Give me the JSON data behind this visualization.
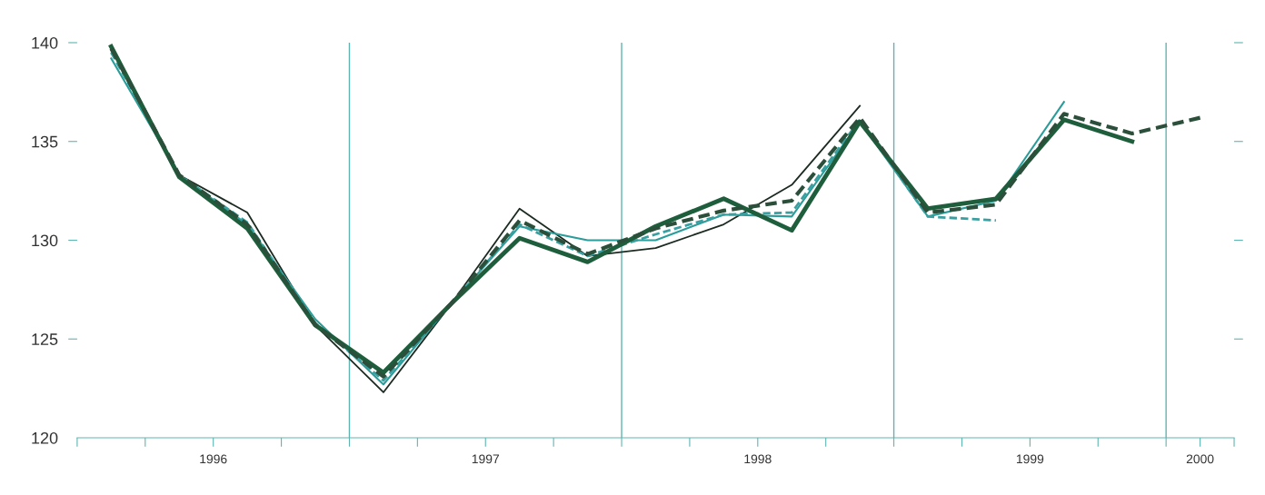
{
  "chart_data": {
    "type": "line",
    "grid": false,
    "legend": false,
    "marker": "none",
    "x": [
      1996.125,
      1996.375,
      1996.625,
      1996.875,
      1997.125,
      1997.375,
      1997.625,
      1997.875,
      1998.125,
      1998.375,
      1998.625,
      1998.875,
      1999.125,
      1999.375,
      1999.625,
      1999.875,
      2000.125
    ],
    "xlim": [
      1996,
      2000.25
    ],
    "xticks": [
      {
        "value": 1996,
        "label": null
      },
      {
        "value": 1996.25,
        "label": null
      },
      {
        "value": 1996.5,
        "label": "1996"
      },
      {
        "value": 1996.75,
        "label": null
      },
      {
        "value": 1997,
        "label": null
      },
      {
        "value": 1997.25,
        "label": null
      },
      {
        "value": 1997.5,
        "label": "1997"
      },
      {
        "value": 1997.75,
        "label": null
      },
      {
        "value": 1998,
        "label": null
      },
      {
        "value": 1998.25,
        "label": null
      },
      {
        "value": 1998.5,
        "label": "1998"
      },
      {
        "value": 1998.75,
        "label": null
      },
      {
        "value": 1999,
        "label": null
      },
      {
        "value": 1999.25,
        "label": null
      },
      {
        "value": 1999.5,
        "label": "1999"
      },
      {
        "value": 1999.75,
        "label": null
      },
      {
        "value": 2000,
        "label": null
      },
      {
        "value": 2000.125,
        "label": "2000"
      },
      {
        "value": 2000.25,
        "label": null
      }
    ],
    "ylim": [
      120,
      140
    ],
    "yticks": [
      120,
      125,
      130,
      135,
      140
    ],
    "ref_lines": [
      {
        "axis": "x",
        "value": 1997,
        "color": "#5fb5b2"
      },
      {
        "axis": "x",
        "value": 1998,
        "color": "#5fb5b2"
      },
      {
        "axis": "x",
        "value": 1999,
        "color": "#5fb5b2"
      },
      {
        "axis": "x",
        "value": 2000,
        "color": "#5fb5b2"
      }
    ],
    "series": [
      {
        "color": "#1c2b22",
        "line_style": "solid",
        "values": [
          139.7,
          133.3,
          131.4,
          125.7,
          122.3,
          126.8,
          131.6,
          129.2,
          129.6,
          130.8,
          132.8,
          136.8,
          null,
          null,
          null,
          null,
          null
        ]
      },
      {
        "color": "#2a9d9a",
        "line_style": "solid",
        "values": [
          139.2,
          133.3,
          130.8,
          126.0,
          122.7,
          126.8,
          130.7,
          130.0,
          130.0,
          131.3,
          131.2,
          136.0,
          131.2,
          132.0,
          137.0,
          null,
          null
        ]
      },
      {
        "color": "#3a9fa0",
        "line_style": "dashed",
        "values": [
          139.5,
          133.3,
          130.9,
          125.8,
          122.9,
          126.8,
          130.8,
          129.2,
          130.3,
          131.3,
          131.4,
          136.1,
          131.2,
          131.0,
          null,
          null,
          null
        ]
      },
      {
        "color": "#1e5e3c",
        "line_style": "solid",
        "values": [
          139.8,
          133.2,
          130.6,
          125.7,
          123.3,
          126.8,
          130.1,
          128.9,
          130.7,
          132.1,
          130.5,
          136.0,
          131.6,
          132.1,
          136.1,
          135.0,
          null
        ]
      },
      {
        "color": "#2b4f3a",
        "line_style": "dashed",
        "values": [
          139.7,
          133.3,
          130.8,
          125.7,
          123.1,
          126.8,
          131.0,
          129.3,
          130.6,
          131.5,
          132.0,
          136.2,
          131.4,
          131.8,
          136.4,
          135.4,
          136.2
        ]
      }
    ]
  }
}
